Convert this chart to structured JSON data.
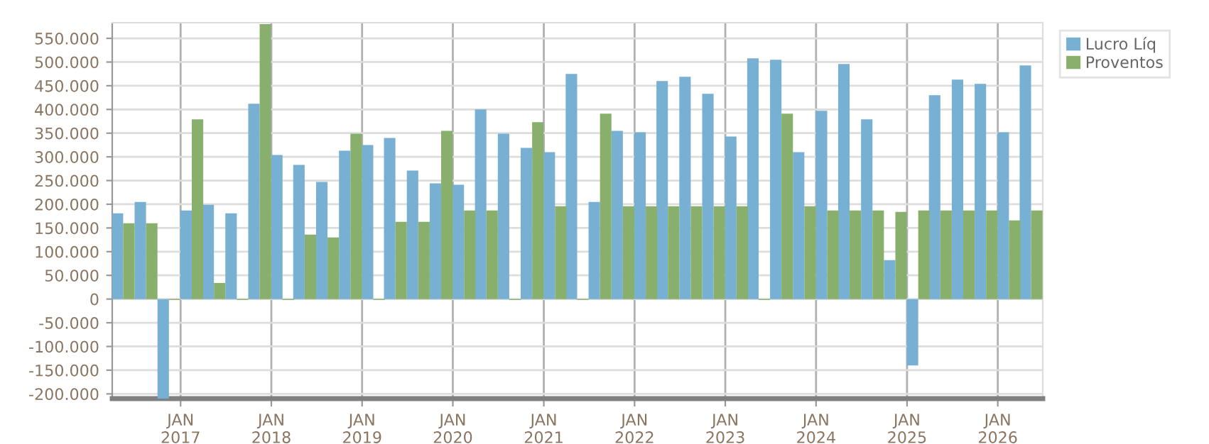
{
  "chart_data": {
    "type": "bar",
    "x": [
      "2016-05-15",
      "2016-08-15",
      "2016-11-15",
      "2017-02-15",
      "2017-05-15",
      "2017-08-15",
      "2017-11-15",
      "2018-02-15",
      "2018-05-15",
      "2018-08-15",
      "2018-11-15",
      "2019-02-15",
      "2019-05-15",
      "2019-08-15",
      "2019-11-15",
      "2020-02-15",
      "2020-05-15",
      "2020-08-15",
      "2020-11-15",
      "2021-02-15",
      "2021-05-15",
      "2021-08-15",
      "2021-11-15",
      "2022-02-15",
      "2022-05-15",
      "2022-08-15",
      "2022-11-15",
      "2023-02-15",
      "2023-05-15",
      "2023-08-15",
      "2023-11-15",
      "2024-02-15",
      "2024-05-15",
      "2024-08-15",
      "2024-11-15",
      "2025-02-15",
      "2025-05-15",
      "2025-08-15",
      "2025-11-15",
      "2026-02-15",
      "2026-05-15"
    ],
    "series": [
      {
        "name": "Lucro Líq",
        "color": "#77b0d3",
        "values": [
          181000,
          205000,
          -210000,
          187000,
          199000,
          181000,
          412000,
          304000,
          283000,
          247000,
          313000,
          325000,
          340000,
          271000,
          244000,
          241000,
          400000,
          349000,
          319000,
          310000,
          475000,
          205000,
          355000,
          352000,
          460000,
          469000,
          433000,
          343000,
          508000,
          505000,
          310000,
          397000,
          496000,
          379000,
          82000,
          -140000,
          430000,
          463000,
          454000,
          352000,
          493000
        ]
      },
      {
        "name": "Proventos",
        "color": "#88b06c",
        "values": [
          160000,
          160000,
          -2000,
          379000,
          34000,
          -2000,
          580000,
          -2000,
          136000,
          130000,
          349000,
          -2000,
          163000,
          163000,
          355000,
          187000,
          187000,
          -2000,
          373000,
          196000,
          -2000,
          391000,
          196000,
          196000,
          196000,
          196000,
          196000,
          196000,
          -2000,
          391000,
          196000,
          187000,
          187000,
          187000,
          184000,
          187000,
          187000,
          187000,
          187000,
          166000,
          187000
        ]
      }
    ],
    "xlim": [
      "2016-04-01",
      "2026-07-01"
    ],
    "xticks": [
      {
        "value": "2017-01-01",
        "label": "JAN\n2017"
      },
      {
        "value": "2018-01-01",
        "label": "JAN\n2018"
      },
      {
        "value": "2019-01-01",
        "label": "JAN\n2019"
      },
      {
        "value": "2020-01-01",
        "label": "JAN\n2020"
      },
      {
        "value": "2021-01-01",
        "label": "JAN\n2021"
      },
      {
        "value": "2022-01-01",
        "label": "JAN\n2022"
      },
      {
        "value": "2023-01-01",
        "label": "JAN\n2023"
      },
      {
        "value": "2024-01-01",
        "label": "JAN\n2024"
      },
      {
        "value": "2025-01-01",
        "label": "JAN\n2025"
      },
      {
        "value": "2026-01-01",
        "label": "JAN\n2026"
      }
    ],
    "ylim": [
      -210000,
      583000
    ],
    "yticks": [
      {
        "value": -200000,
        "label": "-200.000"
      },
      {
        "value": -150000,
        "label": "-150.000"
      },
      {
        "value": -100000,
        "label": "-100.000"
      },
      {
        "value": -50000,
        "label": "-50.000"
      },
      0,
      {
        "value": 50000,
        "label": "50.000"
      },
      {
        "value": 100000,
        "label": "100.000"
      },
      {
        "value": 150000,
        "label": "150.000"
      },
      {
        "value": 200000,
        "label": "200.000"
      },
      {
        "value": 250000,
        "label": "250.000"
      },
      {
        "value": 300000,
        "label": "300.000"
      },
      {
        "value": 350000,
        "label": "350.000"
      },
      {
        "value": 400000,
        "label": "400.000"
      },
      {
        "value": 450000,
        "label": "450.000"
      },
      {
        "value": 500000,
        "label": "500.000"
      },
      {
        "value": 550000,
        "label": "550.000"
      }
    ],
    "grid": true,
    "legend": "top right"
  }
}
